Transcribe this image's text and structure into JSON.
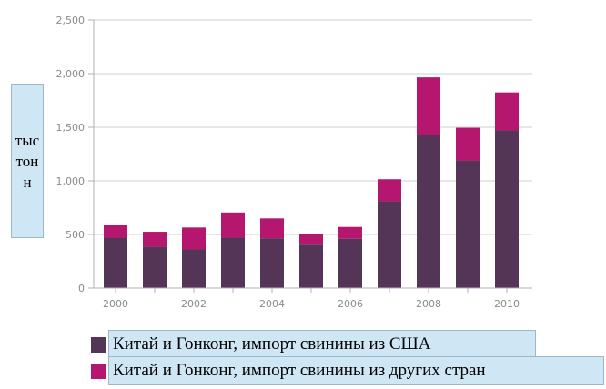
{
  "chart_data": {
    "type": "bar",
    "stacked": true,
    "x": [
      2000,
      2001,
      2002,
      2003,
      2004,
      2005,
      2006,
      2007,
      2008,
      2009,
      2010
    ],
    "x_tick_labels": [
      "2000",
      "2002",
      "2004",
      "2006",
      "2008",
      "2010"
    ],
    "y_tick_labels": [
      "0",
      "500",
      "1,000",
      "1,500",
      "2,000",
      "2,500"
    ],
    "ylim": [
      0,
      2500
    ],
    "ylabel": "тыс тонн",
    "grid": "horizontal",
    "series": [
      {
        "name": "Китай и Гонконг, импорт свинины из США",
        "color": "#553557",
        "values": [
          470,
          385,
          360,
          470,
          465,
          405,
          460,
          810,
          1430,
          1190,
          1470
        ]
      },
      {
        "name": "Китай и Гонконг, импорт свинины из других стран",
        "color": "#b5176f",
        "values": [
          115,
          140,
          205,
          235,
          185,
          100,
          110,
          205,
          535,
          305,
          355
        ]
      }
    ]
  }
}
